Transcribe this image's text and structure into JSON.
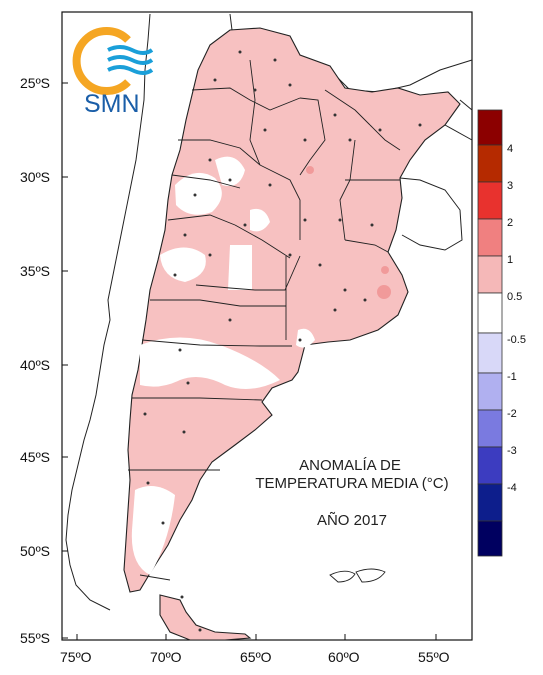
{
  "map": {
    "title_line1": "ANOMALÍA DE",
    "title_line2": "TEMPERATURA MEDIA (°C)",
    "year": "AÑO 2017",
    "logo_text": "SMN",
    "lat_labels": [
      "25ºS",
      "30ºS",
      "35ºS",
      "40ºS",
      "45ºS",
      "50ºS",
      "55ºS"
    ],
    "lon_labels": [
      "75ºO",
      "70ºO",
      "65ºO",
      "60ºO",
      "55ºO"
    ]
  },
  "legend": {
    "labels": [
      "4",
      "3",
      "2",
      "1",
      "0.5",
      "-0.5",
      "-1",
      "-2",
      "-3",
      "-4"
    ],
    "colors": [
      "#8c0000",
      "#b52a00",
      "#e8322e",
      "#f08080",
      "#f5b8b8",
      "#ffffff",
      "#d8d8f8",
      "#b0b0f0",
      "#7a7ae0",
      "#3c3cc0",
      "#0d1e8c",
      "#000060"
    ]
  },
  "colors": {
    "anomaly_fill": "#f7c1c1",
    "warm_spot": "#f19a9a",
    "border": "#222222",
    "logo_orange": "#f5a623",
    "logo_blue": "#1a9fd9"
  }
}
